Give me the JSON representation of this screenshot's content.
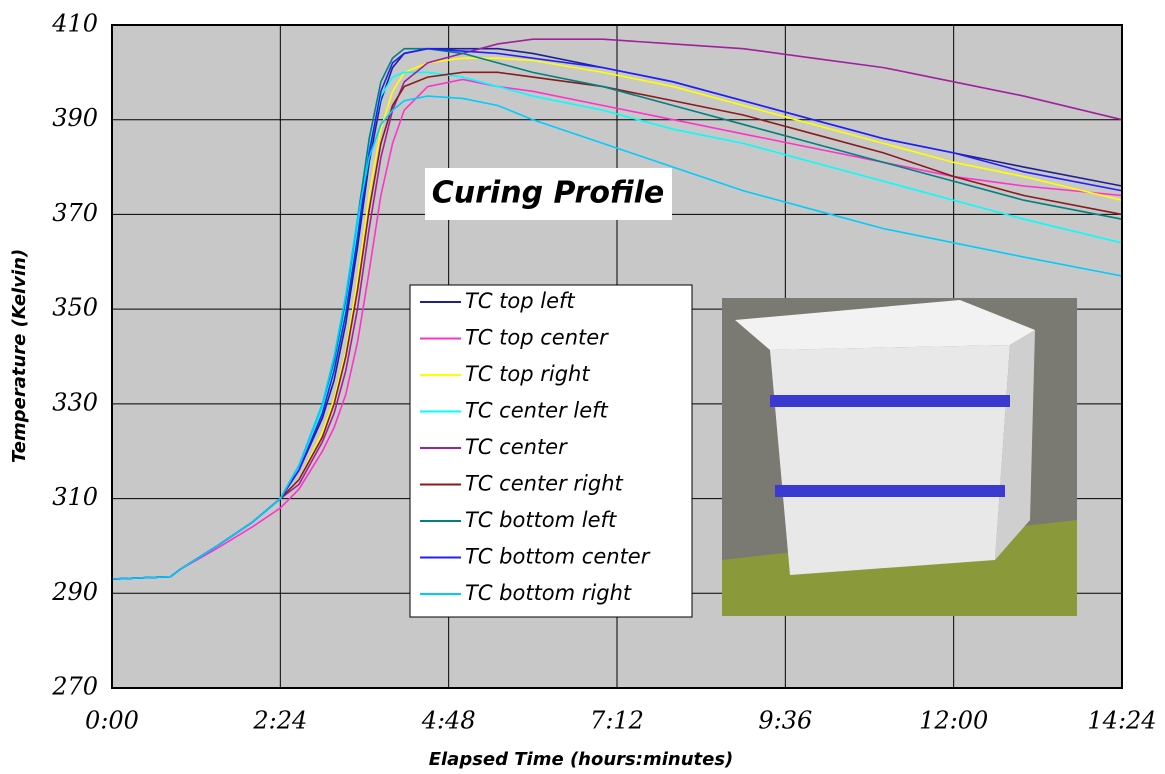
{
  "chart_data": {
    "type": "line",
    "title": "Curing Profile",
    "x_label": "Elapsed Time (hours:minutes)",
    "y_label": "Temperature (Kelvin)",
    "x": [
      0,
      50,
      58,
      90,
      120,
      144,
      160,
      180,
      190,
      200,
      210,
      220,
      230,
      240,
      250,
      270,
      300,
      330,
      360,
      420,
      480,
      540,
      600,
      660,
      720,
      780,
      864
    ],
    "series": [
      {
        "name": "TC top left",
        "color": "#202090",
        "values": [
          293,
          293.5,
          295,
          300,
          305,
          310,
          316,
          327,
          335,
          347,
          363,
          381,
          394,
          401,
          404,
          405,
          405,
          405,
          404,
          401,
          398,
          394,
          390,
          386,
          383,
          380,
          376
        ]
      },
      {
        "name": "TC top center",
        "color": "#ff33cc",
        "values": [
          293,
          293.5,
          295,
          299.5,
          304,
          308,
          312,
          320,
          325,
          332,
          343,
          358,
          374,
          385,
          392,
          397,
          398.5,
          397,
          396,
          393,
          390,
          387,
          384,
          381,
          378,
          376,
          374
        ]
      },
      {
        "name": "TC top right",
        "color": "#ffff00",
        "values": [
          293,
          293.5,
          295,
          300,
          305,
          310,
          314,
          324,
          331,
          341,
          356,
          374,
          388,
          396,
          400,
          402,
          403,
          403,
          402.5,
          400,
          397,
          393,
          389,
          385,
          381,
          378,
          373
        ]
      },
      {
        "name": "TC center left",
        "color": "#00ffff",
        "values": [
          293,
          293.5,
          295,
          300,
          305,
          310,
          317,
          329,
          338,
          350,
          367,
          384,
          395,
          399,
          400,
          400,
          399,
          397,
          395,
          392,
          388,
          385,
          381,
          377,
          373,
          369,
          364
        ]
      },
      {
        "name": "TC center",
        "color": "#a020a0",
        "values": [
          293,
          293.5,
          295,
          300,
          305,
          310,
          313,
          322,
          328,
          337,
          350,
          367,
          382,
          392,
          398,
          402,
          404,
          406,
          407,
          407,
          406,
          405,
          403,
          401,
          398,
          395,
          390
        ]
      },
      {
        "name": "TC center right",
        "color": "#8b1a1a",
        "values": [
          293,
          293.5,
          295,
          300,
          305,
          310,
          314,
          323,
          330,
          340,
          354,
          371,
          385,
          393,
          397,
          399,
          400,
          400,
          399,
          397,
          394,
          391,
          387,
          383,
          378,
          374,
          370
        ]
      },
      {
        "name": "TC bottom left",
        "color": "#008080",
        "values": [
          293,
          293.5,
          295,
          300,
          305,
          310,
          317,
          330,
          339,
          352,
          369,
          386,
          398,
          403,
          405,
          405,
          404,
          402,
          400,
          397,
          393,
          389,
          385,
          381,
          377,
          373,
          369
        ]
      },
      {
        "name": "TC bottom center",
        "color": "#2020ff",
        "values": [
          293,
          293.5,
          295,
          300,
          305,
          310,
          316,
          328,
          337,
          349,
          365,
          383,
          396,
          402,
          404,
          405,
          404.5,
          404,
          403,
          401,
          398,
          394,
          390,
          386,
          383,
          379,
          375
        ]
      },
      {
        "name": "TC bottom right",
        "color": "#00ccff",
        "values": [
          293,
          293.5,
          295,
          300,
          305,
          310,
          317,
          330,
          340,
          353,
          369,
          382,
          389,
          392,
          394,
          395,
          394.5,
          393,
          390,
          385,
          380,
          375,
          371,
          367,
          364,
          361,
          357
        ]
      }
    ],
    "xlim": [
      0,
      864
    ],
    "xticks": [
      {
        "value": 0,
        "label": "0:00"
      },
      {
        "value": 144,
        "label": "2:24"
      },
      {
        "value": 288,
        "label": "4:48"
      },
      {
        "value": 432,
        "label": "7:12"
      },
      {
        "value": 576,
        "label": "9:36"
      },
      {
        "value": 720,
        "label": "12:00"
      },
      {
        "value": 864,
        "label": "14:24"
      }
    ],
    "ylim": [
      270,
      410
    ],
    "yticks": [
      270,
      290,
      310,
      330,
      350,
      370,
      390,
      410
    ],
    "grid": true
  }
}
